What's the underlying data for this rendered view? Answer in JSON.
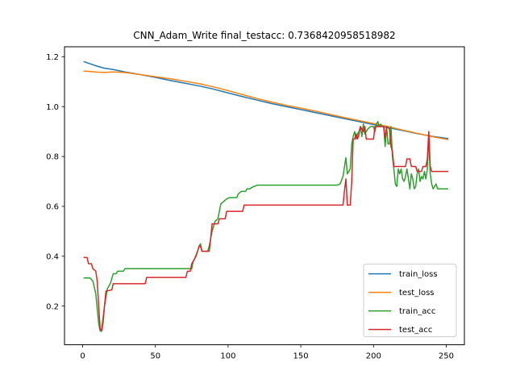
{
  "chart_data": {
    "type": "line",
    "title": "CNN_Adam_Write  final_testacc: 0.7368420958518982",
    "xlabel": "",
    "ylabel": "",
    "xlim": [
      -12.5,
      262.5
    ],
    "ylim": [
      0.045,
      1.24
    ],
    "xticks": [
      0,
      50,
      100,
      150,
      200,
      250
    ],
    "yticks": [
      0.2,
      0.4,
      0.6,
      0.8,
      1.0,
      1.2
    ],
    "x_tick_labels": [
      "0",
      "50",
      "100",
      "150",
      "200",
      "250"
    ],
    "y_tick_labels": [
      "0.2",
      "0.4",
      "0.6",
      "0.8",
      "1.0",
      "1.2"
    ],
    "grid": false,
    "legend_position": "lower-right",
    "series": [
      {
        "name": "train_loss",
        "color": "#1f77b4",
        "points": [
          [
            1,
            1.18
          ],
          [
            5,
            1.172
          ],
          [
            10,
            1.162
          ],
          [
            15,
            1.154
          ],
          [
            20,
            1.15
          ],
          [
            30,
            1.138
          ],
          [
            40,
            1.128
          ],
          [
            50,
            1.117
          ],
          [
            60,
            1.105
          ],
          [
            70,
            1.094
          ],
          [
            80,
            1.083
          ],
          [
            90,
            1.07
          ],
          [
            100,
            1.055
          ],
          [
            110,
            1.04
          ],
          [
            120,
            1.026
          ],
          [
            130,
            1.012
          ],
          [
            140,
            1.0
          ],
          [
            150,
            0.988
          ],
          [
            160,
            0.976
          ],
          [
            170,
            0.964
          ],
          [
            180,
            0.952
          ],
          [
            190,
            0.94
          ],
          [
            200,
            0.928
          ],
          [
            210,
            0.916
          ],
          [
            220,
            0.904
          ],
          [
            230,
            0.892
          ],
          [
            240,
            0.881
          ],
          [
            251,
            0.872
          ]
        ]
      },
      {
        "name": "test_loss",
        "color": "#ff7f0e",
        "points": [
          [
            1,
            1.142
          ],
          [
            5,
            1.141
          ],
          [
            10,
            1.138
          ],
          [
            15,
            1.137
          ],
          [
            20,
            1.139
          ],
          [
            25,
            1.138
          ],
          [
            30,
            1.136
          ],
          [
            40,
            1.128
          ],
          [
            50,
            1.12
          ],
          [
            60,
            1.112
          ],
          [
            70,
            1.102
          ],
          [
            80,
            1.092
          ],
          [
            90,
            1.079
          ],
          [
            100,
            1.064
          ],
          [
            110,
            1.048
          ],
          [
            120,
            1.032
          ],
          [
            130,
            1.018
          ],
          [
            140,
            1.005
          ],
          [
            150,
            0.994
          ],
          [
            160,
            0.982
          ],
          [
            170,
            0.969
          ],
          [
            180,
            0.956
          ],
          [
            190,
            0.944
          ],
          [
            200,
            0.932
          ],
          [
            210,
            0.92
          ],
          [
            220,
            0.906
          ],
          [
            230,
            0.893
          ],
          [
            240,
            0.88
          ],
          [
            251,
            0.868
          ]
        ]
      },
      {
        "name": "train_acc",
        "color": "#2ca02c",
        "points": [
          [
            1,
            0.313
          ],
          [
            5,
            0.313
          ],
          [
            7,
            0.3
          ],
          [
            9,
            0.25
          ],
          [
            11,
            0.13
          ],
          [
            12,
            0.1
          ],
          [
            13,
            0.1
          ],
          [
            14,
            0.13
          ],
          [
            15,
            0.2
          ],
          [
            17,
            0.27
          ],
          [
            19,
            0.29
          ],
          [
            21,
            0.33
          ],
          [
            23,
            0.33
          ],
          [
            24,
            0.34
          ],
          [
            28,
            0.34
          ],
          [
            29,
            0.35
          ],
          [
            40,
            0.35
          ],
          [
            50,
            0.35
          ],
          [
            60,
            0.35
          ],
          [
            70,
            0.35
          ],
          [
            75,
            0.35
          ],
          [
            76,
            0.38
          ],
          [
            78,
            0.4
          ],
          [
            80,
            0.44
          ],
          [
            81,
            0.45
          ],
          [
            82,
            0.42
          ],
          [
            86,
            0.42
          ],
          [
            87,
            0.44
          ],
          [
            89,
            0.5
          ],
          [
            91,
            0.54
          ],
          [
            93,
            0.55
          ],
          [
            95,
            0.61
          ],
          [
            97,
            0.62
          ],
          [
            99,
            0.63
          ],
          [
            101,
            0.635
          ],
          [
            106,
            0.635
          ],
          [
            107,
            0.65
          ],
          [
            109,
            0.66
          ],
          [
            112,
            0.66
          ],
          [
            113,
            0.67
          ],
          [
            115,
            0.67
          ],
          [
            116,
            0.675
          ],
          [
            118,
            0.68
          ],
          [
            120,
            0.685
          ],
          [
            140,
            0.685
          ],
          [
            160,
            0.685
          ],
          [
            175,
            0.685
          ],
          [
            177,
            0.69
          ],
          [
            179,
            0.72
          ],
          [
            181,
            0.795
          ],
          [
            182,
            0.73
          ],
          [
            184,
            0.75
          ],
          [
            185,
            0.85
          ],
          [
            186,
            0.88
          ],
          [
            187,
            0.9
          ],
          [
            188,
            0.87
          ],
          [
            189,
            0.89
          ],
          [
            190,
            0.9
          ],
          [
            191,
            0.92
          ],
          [
            192,
            0.88
          ],
          [
            193,
            0.93
          ],
          [
            194,
            0.89
          ],
          [
            196,
            0.91
          ],
          [
            198,
            0.92
          ],
          [
            200,
            0.92
          ],
          [
            201,
            0.9
          ],
          [
            202,
            0.93
          ],
          [
            203,
            0.94
          ],
          [
            204,
            0.92
          ],
          [
            205,
            0.93
          ],
          [
            206,
            0.92
          ],
          [
            207,
            0.92
          ],
          [
            208,
            0.84
          ],
          [
            209,
            0.92
          ],
          [
            210,
            0.85
          ],
          [
            211,
            0.85
          ],
          [
            212,
            0.92
          ],
          [
            213,
            0.8
          ],
          [
            214,
            0.75
          ],
          [
            215,
            0.69
          ],
          [
            216,
            0.68
          ],
          [
            217,
            0.75
          ],
          [
            218,
            0.73
          ],
          [
            219,
            0.75
          ],
          [
            220,
            0.71
          ],
          [
            221,
            0.7
          ],
          [
            222,
            0.72
          ],
          [
            223,
            0.75
          ],
          [
            224,
            0.71
          ],
          [
            225,
            0.67
          ],
          [
            226,
            0.73
          ],
          [
            227,
            0.71
          ],
          [
            228,
            0.67
          ],
          [
            229,
            0.68
          ],
          [
            230,
            0.73
          ],
          [
            231,
            0.75
          ],
          [
            232,
            0.7
          ],
          [
            233,
            0.72
          ],
          [
            234,
            0.71
          ],
          [
            235,
            0.74
          ],
          [
            236,
            0.71
          ],
          [
            237,
            0.75
          ],
          [
            238,
            0.88
          ],
          [
            239,
            0.73
          ],
          [
            240,
            0.69
          ],
          [
            241,
            0.67
          ],
          [
            242,
            0.68
          ],
          [
            243,
            0.69
          ],
          [
            244,
            0.67
          ],
          [
            251,
            0.67
          ]
        ]
      },
      {
        "name": "test_acc",
        "color": "#d62728",
        "points": [
          [
            1,
            0.395
          ],
          [
            3,
            0.395
          ],
          [
            4,
            0.37
          ],
          [
            6,
            0.37
          ],
          [
            7,
            0.35
          ],
          [
            9,
            0.34
          ],
          [
            10,
            0.3
          ],
          [
            11,
            0.2
          ],
          [
            12,
            0.11
          ],
          [
            13,
            0.1
          ],
          [
            15,
            0.2
          ],
          [
            16,
            0.26
          ],
          [
            20,
            0.265
          ],
          [
            21,
            0.29
          ],
          [
            43,
            0.29
          ],
          [
            44,
            0.315
          ],
          [
            71,
            0.315
          ],
          [
            72,
            0.34
          ],
          [
            74,
            0.34
          ],
          [
            75,
            0.37
          ],
          [
            77,
            0.39
          ],
          [
            79,
            0.42
          ],
          [
            80,
            0.44
          ],
          [
            81,
            0.44
          ],
          [
            82,
            0.42
          ],
          [
            87,
            0.42
          ],
          [
            88,
            0.47
          ],
          [
            89,
            0.53
          ],
          [
            93,
            0.53
          ],
          [
            94,
            0.55
          ],
          [
            98,
            0.55
          ],
          [
            99,
            0.58
          ],
          [
            110,
            0.58
          ],
          [
            111,
            0.605
          ],
          [
            140,
            0.605
          ],
          [
            179,
            0.605
          ],
          [
            180,
            0.66
          ],
          [
            181,
            0.71
          ],
          [
            182,
            0.605
          ],
          [
            184,
            0.605
          ],
          [
            185,
            0.7
          ],
          [
            186,
            0.87
          ],
          [
            187,
            0.87
          ],
          [
            188,
            0.89
          ],
          [
            189,
            0.87
          ],
          [
            190,
            0.89
          ],
          [
            191,
            0.92
          ],
          [
            193,
            0.9
          ],
          [
            194,
            0.92
          ],
          [
            195,
            0.87
          ],
          [
            200,
            0.87
          ],
          [
            201,
            0.92
          ],
          [
            207,
            0.92
          ],
          [
            208,
            0.87
          ],
          [
            209,
            0.92
          ],
          [
            211,
            0.91
          ],
          [
            212,
            0.84
          ],
          [
            213,
            0.82
          ],
          [
            214,
            0.76
          ],
          [
            222,
            0.76
          ],
          [
            223,
            0.79
          ],
          [
            225,
            0.79
          ],
          [
            226,
            0.76
          ],
          [
            229,
            0.76
          ],
          [
            230,
            0.74
          ],
          [
            233,
            0.74
          ],
          [
            234,
            0.76
          ],
          [
            236,
            0.76
          ],
          [
            237,
            0.79
          ],
          [
            238,
            0.9
          ],
          [
            239,
            0.76
          ],
          [
            240,
            0.74
          ],
          [
            251,
            0.74
          ]
        ]
      }
    ]
  }
}
